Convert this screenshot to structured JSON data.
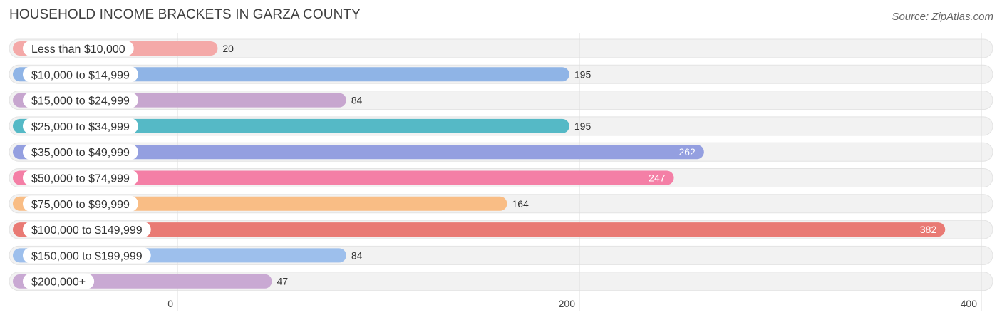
{
  "header": {
    "title": "HOUSEHOLD INCOME BRACKETS IN GARZA COUNTY",
    "source": "Source: ZipAtlas.com"
  },
  "chart_data": {
    "type": "bar",
    "orientation": "horizontal",
    "title": "HOUSEHOLD INCOME BRACKETS IN GARZA COUNTY",
    "xlabel": "",
    "ylabel": "",
    "xlim": [
      0,
      400
    ],
    "xticks": [
      0,
      200,
      400
    ],
    "grid": true,
    "categories": [
      "Less than $10,000",
      "$10,000 to $14,999",
      "$15,000 to $24,999",
      "$25,000 to $34,999",
      "$35,000 to $49,999",
      "$50,000 to $74,999",
      "$75,000 to $99,999",
      "$100,000 to $149,999",
      "$150,000 to $199,999",
      "$200,000+"
    ],
    "values": [
      20,
      195,
      84,
      195,
      262,
      247,
      164,
      382,
      84,
      47
    ],
    "colors": [
      "#f4a9a8",
      "#8fb4e6",
      "#c7a6cf",
      "#55b9c6",
      "#949fe0",
      "#f47fa6",
      "#f9bd85",
      "#e97a74",
      "#9dbfec",
      "#c9a9d3"
    ],
    "row_background": "#f2f2f2"
  }
}
